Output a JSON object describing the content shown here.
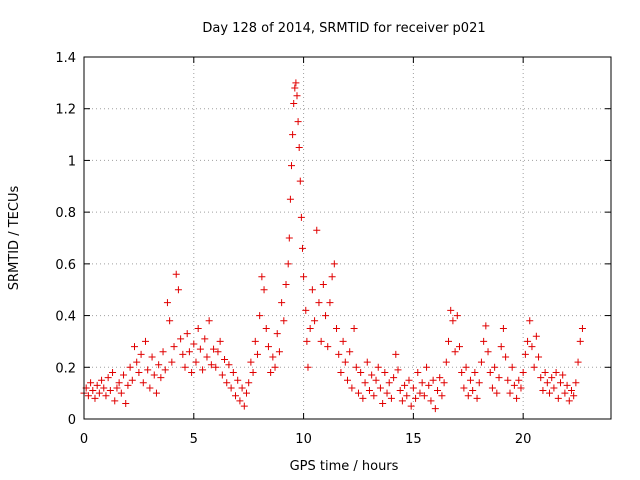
{
  "chart_data": {
    "type": "scatter",
    "title": "Day 128 of 2014, SRMTID for receiver p021",
    "xlabel": "GPS time / hours",
    "ylabel": "SRMTID / TECUs",
    "xlim": [
      0,
      24
    ],
    "ylim": [
      0,
      1.4
    ],
    "xticks": [
      0,
      5,
      10,
      15,
      20
    ],
    "xtick_labels": [
      "0",
      "5",
      "10",
      "15",
      "20"
    ],
    "yticks": [
      0,
      0.2,
      0.4,
      0.6,
      0.8,
      1,
      1.2,
      1.4
    ],
    "ytick_labels": [
      "0",
      "0.2",
      "0.4",
      "0.6",
      "0.8",
      "1",
      "1.2",
      "1.4"
    ],
    "grid": true,
    "marker": "+",
    "color": "#e00000",
    "series": [
      {
        "name": "SRMTID",
        "points": [
          [
            0.0,
            0.1
          ],
          [
            0.1,
            0.12
          ],
          [
            0.2,
            0.09
          ],
          [
            0.3,
            0.14
          ],
          [
            0.4,
            0.11
          ],
          [
            0.5,
            0.08
          ],
          [
            0.6,
            0.13
          ],
          [
            0.7,
            0.1
          ],
          [
            0.8,
            0.15
          ],
          [
            0.9,
            0.12
          ],
          [
            1.0,
            0.09
          ],
          [
            1.1,
            0.16
          ],
          [
            1.2,
            0.11
          ],
          [
            1.3,
            0.18
          ],
          [
            1.4,
            0.07
          ],
          [
            1.5,
            0.12
          ],
          [
            1.6,
            0.14
          ],
          [
            1.7,
            0.1
          ],
          [
            1.8,
            0.17
          ],
          [
            1.9,
            0.06
          ],
          [
            2.0,
            0.13
          ],
          [
            2.1,
            0.2
          ],
          [
            2.2,
            0.15
          ],
          [
            2.3,
            0.28
          ],
          [
            2.4,
            0.22
          ],
          [
            2.5,
            0.18
          ],
          [
            2.6,
            0.25
          ],
          [
            2.7,
            0.14
          ],
          [
            2.8,
            0.3
          ],
          [
            2.9,
            0.19
          ],
          [
            3.0,
            0.12
          ],
          [
            3.1,
            0.24
          ],
          [
            3.2,
            0.17
          ],
          [
            3.3,
            0.1
          ],
          [
            3.4,
            0.21
          ],
          [
            3.5,
            0.16
          ],
          [
            3.6,
            0.26
          ],
          [
            3.7,
            0.19
          ],
          [
            3.8,
            0.45
          ],
          [
            3.9,
            0.38
          ],
          [
            4.0,
            0.22
          ],
          [
            4.1,
            0.28
          ],
          [
            4.2,
            0.56
          ],
          [
            4.3,
            0.5
          ],
          [
            4.4,
            0.31
          ],
          [
            4.5,
            0.25
          ],
          [
            4.6,
            0.2
          ],
          [
            4.7,
            0.33
          ],
          [
            4.8,
            0.26
          ],
          [
            4.9,
            0.18
          ],
          [
            5.0,
            0.29
          ],
          [
            5.1,
            0.22
          ],
          [
            5.2,
            0.35
          ],
          [
            5.3,
            0.27
          ],
          [
            5.4,
            0.19
          ],
          [
            5.5,
            0.31
          ],
          [
            5.6,
            0.24
          ],
          [
            5.7,
            0.38
          ],
          [
            5.8,
            0.21
          ],
          [
            5.9,
            0.27
          ],
          [
            6.0,
            0.2
          ],
          [
            6.1,
            0.26
          ],
          [
            6.2,
            0.3
          ],
          [
            6.3,
            0.17
          ],
          [
            6.4,
            0.23
          ],
          [
            6.5,
            0.14
          ],
          [
            6.6,
            0.21
          ],
          [
            6.7,
            0.12
          ],
          [
            6.8,
            0.18
          ],
          [
            6.9,
            0.09
          ],
          [
            7.0,
            0.15
          ],
          [
            7.1,
            0.07
          ],
          [
            7.2,
            0.12
          ],
          [
            7.3,
            0.05
          ],
          [
            7.4,
            0.1
          ],
          [
            7.5,
            0.14
          ],
          [
            7.6,
            0.22
          ],
          [
            7.7,
            0.18
          ],
          [
            7.8,
            0.3
          ],
          [
            7.9,
            0.25
          ],
          [
            8.0,
            0.4
          ],
          [
            8.1,
            0.55
          ],
          [
            8.2,
            0.5
          ],
          [
            8.3,
            0.35
          ],
          [
            8.4,
            0.28
          ],
          [
            8.5,
            0.18
          ],
          [
            8.6,
            0.24
          ],
          [
            8.7,
            0.2
          ],
          [
            8.8,
            0.33
          ],
          [
            8.9,
            0.26
          ],
          [
            9.0,
            0.45
          ],
          [
            9.1,
            0.38
          ],
          [
            9.2,
            0.52
          ],
          [
            9.3,
            0.6
          ],
          [
            9.35,
            0.7
          ],
          [
            9.4,
            0.85
          ],
          [
            9.45,
            0.98
          ],
          [
            9.5,
            1.1
          ],
          [
            9.55,
            1.22
          ],
          [
            9.6,
            1.28
          ],
          [
            9.65,
            1.3
          ],
          [
            9.7,
            1.25
          ],
          [
            9.75,
            1.15
          ],
          [
            9.8,
            1.05
          ],
          [
            9.85,
            0.92
          ],
          [
            9.9,
            0.78
          ],
          [
            9.95,
            0.66
          ],
          [
            10.0,
            0.55
          ],
          [
            10.1,
            0.42
          ],
          [
            10.15,
            0.3
          ],
          [
            10.2,
            0.2
          ],
          [
            10.3,
            0.35
          ],
          [
            10.4,
            0.5
          ],
          [
            10.5,
            0.38
          ],
          [
            10.6,
            0.73
          ],
          [
            10.7,
            0.45
          ],
          [
            10.8,
            0.3
          ],
          [
            10.9,
            0.52
          ],
          [
            11.0,
            0.4
          ],
          [
            11.1,
            0.28
          ],
          [
            11.2,
            0.45
          ],
          [
            11.3,
            0.55
          ],
          [
            11.4,
            0.6
          ],
          [
            11.5,
            0.35
          ],
          [
            11.6,
            0.25
          ],
          [
            11.7,
            0.18
          ],
          [
            11.8,
            0.3
          ],
          [
            11.9,
            0.22
          ],
          [
            12.0,
            0.15
          ],
          [
            12.1,
            0.26
          ],
          [
            12.2,
            0.12
          ],
          [
            12.3,
            0.35
          ],
          [
            12.4,
            0.2
          ],
          [
            12.5,
            0.1
          ],
          [
            12.6,
            0.18
          ],
          [
            12.7,
            0.08
          ],
          [
            12.8,
            0.14
          ],
          [
            12.9,
            0.22
          ],
          [
            13.0,
            0.11
          ],
          [
            13.1,
            0.17
          ],
          [
            13.2,
            0.09
          ],
          [
            13.3,
            0.15
          ],
          [
            13.4,
            0.2
          ],
          [
            13.5,
            0.12
          ],
          [
            13.6,
            0.06
          ],
          [
            13.7,
            0.18
          ],
          [
            13.8,
            0.1
          ],
          [
            13.9,
            0.14
          ],
          [
            14.0,
            0.08
          ],
          [
            14.1,
            0.16
          ],
          [
            14.2,
            0.25
          ],
          [
            14.3,
            0.19
          ],
          [
            14.4,
            0.11
          ],
          [
            14.5,
            0.07
          ],
          [
            14.6,
            0.13
          ],
          [
            14.7,
            0.09
          ],
          [
            14.8,
            0.15
          ],
          [
            14.9,
            0.05
          ],
          [
            15.0,
            0.12
          ],
          [
            15.1,
            0.08
          ],
          [
            15.2,
            0.18
          ],
          [
            15.3,
            0.1
          ],
          [
            15.4,
            0.14
          ],
          [
            15.5,
            0.09
          ],
          [
            15.6,
            0.2
          ],
          [
            15.7,
            0.13
          ],
          [
            15.8,
            0.07
          ],
          [
            15.9,
            0.15
          ],
          [
            16.0,
            0.04
          ],
          [
            16.1,
            0.11
          ],
          [
            16.2,
            0.16
          ],
          [
            16.3,
            0.09
          ],
          [
            16.4,
            0.14
          ],
          [
            16.5,
            0.22
          ],
          [
            16.6,
            0.3
          ],
          [
            16.7,
            0.42
          ],
          [
            16.8,
            0.38
          ],
          [
            16.9,
            0.26
          ],
          [
            17.0,
            0.4
          ],
          [
            17.1,
            0.28
          ],
          [
            17.2,
            0.18
          ],
          [
            17.3,
            0.12
          ],
          [
            17.4,
            0.2
          ],
          [
            17.5,
            0.09
          ],
          [
            17.6,
            0.15
          ],
          [
            17.7,
            0.11
          ],
          [
            17.8,
            0.18
          ],
          [
            17.9,
            0.08
          ],
          [
            18.0,
            0.14
          ],
          [
            18.1,
            0.22
          ],
          [
            18.2,
            0.3
          ],
          [
            18.3,
            0.36
          ],
          [
            18.4,
            0.26
          ],
          [
            18.5,
            0.18
          ],
          [
            18.6,
            0.12
          ],
          [
            18.7,
            0.2
          ],
          [
            18.8,
            0.1
          ],
          [
            18.9,
            0.16
          ],
          [
            19.0,
            0.28
          ],
          [
            19.1,
            0.35
          ],
          [
            19.2,
            0.24
          ],
          [
            19.3,
            0.15
          ],
          [
            19.4,
            0.1
          ],
          [
            19.5,
            0.2
          ],
          [
            19.6,
            0.13
          ],
          [
            19.7,
            0.08
          ],
          [
            19.8,
            0.15
          ],
          [
            19.9,
            0.12
          ],
          [
            20.0,
            0.18
          ],
          [
            20.1,
            0.25
          ],
          [
            20.2,
            0.3
          ],
          [
            20.3,
            0.38
          ],
          [
            20.4,
            0.28
          ],
          [
            20.5,
            0.2
          ],
          [
            20.6,
            0.32
          ],
          [
            20.7,
            0.24
          ],
          [
            20.8,
            0.16
          ],
          [
            20.9,
            0.11
          ],
          [
            21.0,
            0.18
          ],
          [
            21.1,
            0.14
          ],
          [
            21.2,
            0.1
          ],
          [
            21.3,
            0.16
          ],
          [
            21.4,
            0.12
          ],
          [
            21.5,
            0.18
          ],
          [
            21.6,
            0.08
          ],
          [
            21.7,
            0.14
          ],
          [
            21.8,
            0.17
          ],
          [
            21.9,
            0.1
          ],
          [
            22.0,
            0.13
          ],
          [
            22.1,
            0.07
          ],
          [
            22.2,
            0.11
          ],
          [
            22.3,
            0.09
          ],
          [
            22.4,
            0.14
          ],
          [
            22.5,
            0.22
          ],
          [
            22.6,
            0.3
          ],
          [
            22.7,
            0.35
          ]
        ]
      }
    ]
  }
}
